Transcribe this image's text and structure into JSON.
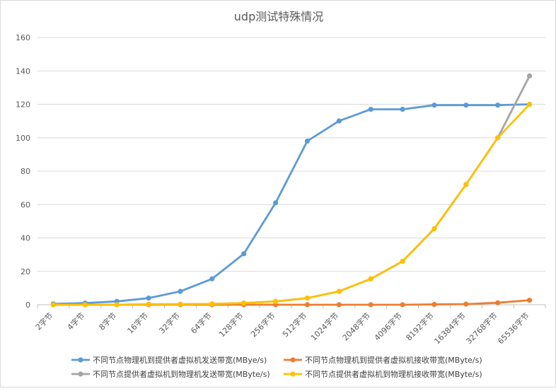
{
  "chart_data": {
    "type": "line",
    "title": "udp测试特殊情况",
    "xlabel": "",
    "ylabel": "",
    "ylim": [
      0,
      160
    ],
    "yticks": [
      0,
      20,
      40,
      60,
      80,
      100,
      120,
      140,
      160
    ],
    "grid": "horizontal",
    "legend_position": "bottom",
    "categories": [
      "2字节",
      "4字节",
      "8字节",
      "16字节",
      "32字节",
      "64字节",
      "128字节",
      "256字节",
      "512字节",
      "1024字节",
      "2048字节",
      "4096字节",
      "8192字节",
      "16384字节",
      "32768字节",
      "65536字节"
    ],
    "series": [
      {
        "name": "不同节点物理机到提供者虚拟机发送带宽(MBye/s)",
        "color": "#5b9bd5",
        "values": [
          0.5,
          1,
          2,
          4,
          8,
          15.5,
          30.5,
          61,
          98,
          110,
          117,
          117,
          119.5,
          119.5,
          119.5,
          120
        ]
      },
      {
        "name": "不同节点物理机到提供者虚拟机接收带宽(MByte/s)",
        "color": "#ed7d31",
        "values": [
          0,
          0,
          0,
          0,
          0,
          0,
          0,
          0,
          0,
          0,
          0,
          0,
          0.2,
          0.4,
          1.2,
          2.7
        ]
      },
      {
        "name": "不同节点提供者虚拟机到物理机发送带宽(MByte/s)",
        "color": "#a5a5a5",
        "values": [
          0,
          0,
          0,
          0.3,
          0.3,
          0.5,
          1,
          2,
          4,
          8,
          15.5,
          26,
          45.5,
          72,
          100,
          137
        ]
      },
      {
        "name": "不同节点提供者虚拟机到物理机接收带宽(MByte/s)",
        "color": "#ffc000",
        "values": [
          0,
          0,
          0,
          0.3,
          0.3,
          0.5,
          1,
          2,
          4,
          8,
          15.5,
          26,
          45.5,
          72,
          100,
          120
        ]
      }
    ]
  }
}
